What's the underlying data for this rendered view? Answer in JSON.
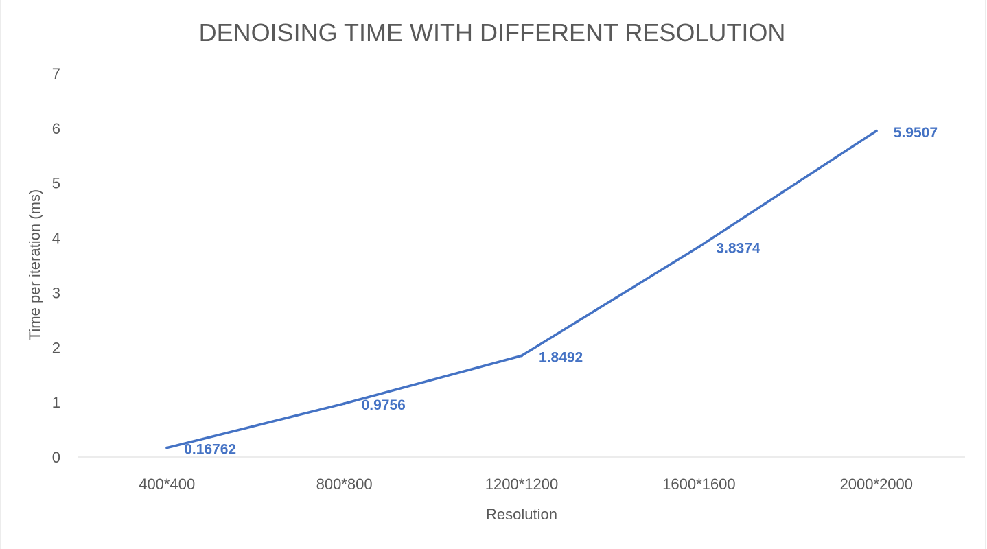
{
  "chart_data": {
    "type": "line",
    "title": "DENOISING TIME WITH DIFFERENT RESOLUTION",
    "xlabel": "Resolution",
    "ylabel": "Time per iteration (ms)",
    "categories": [
      "400*400",
      "800*800",
      "1200*1200",
      "1600*1600",
      "2000*2000"
    ],
    "series": [
      {
        "values": [
          0.16762,
          0.9756,
          1.8492,
          3.8374,
          5.9507
        ],
        "labels": [
          "0.16762",
          "0.9756",
          "1.8492",
          "3.8374",
          "5.9507"
        ],
        "color": "#4472c4"
      }
    ],
    "ylim": [
      0,
      7
    ],
    "yticks": [
      "0",
      "1",
      "2",
      "3",
      "4",
      "5",
      "6",
      "7"
    ],
    "grid": false,
    "legend": "none"
  },
  "colors": {
    "line": "#4472c4",
    "text": "#595959",
    "axis": "#d9d9d9"
  }
}
